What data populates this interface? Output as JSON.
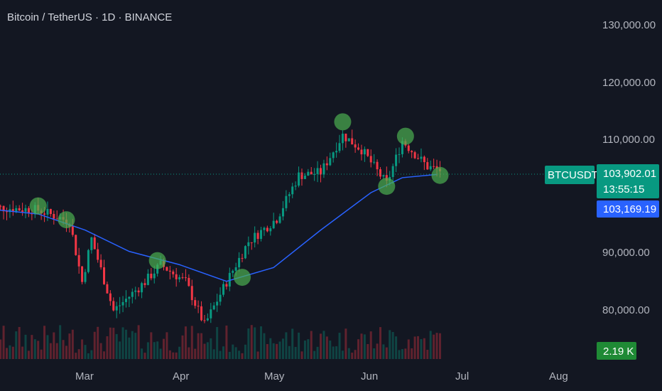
{
  "header": {
    "title": "Bitcoin / TetherUS · 1D · BINANCE"
  },
  "price_badges": {
    "symbol": "BTCUSDT",
    "last_price": "103,902.01",
    "countdown": "13:55:15",
    "ma_value": "103,169.19",
    "volume": "2.19 K"
  },
  "colors": {
    "background": "#131722",
    "up": "#089981",
    "down": "#f23645",
    "ma_line": "#2962ff",
    "circle": "#4caf50"
  },
  "chart_data": {
    "type": "candlestick",
    "title": "Bitcoin / TetherUS · 1D · BINANCE",
    "xlabel": "",
    "ylabel": "",
    "x_ticks": [
      "Mar",
      "Apr",
      "May",
      "Jun",
      "Jul",
      "Aug"
    ],
    "x_tick_dates": [
      "2025-03-01",
      "2025-04-01",
      "2025-05-01",
      "2025-06-01",
      "2025-07-01",
      "2025-08-01"
    ],
    "y_ticks": [
      "80,000.00",
      "90,000.00",
      "110,000.00",
      "120,000.00",
      "130,000.00"
    ],
    "y_tick_values": [
      80000,
      90000,
      110000,
      120000,
      130000
    ],
    "ylim": [
      74000,
      134000
    ],
    "grid": false,
    "moving_average": {
      "values_at": [
        {
          "date": "2025-02-01",
          "value": 97000
        },
        {
          "date": "2025-02-14",
          "value": 96300
        },
        {
          "date": "2025-03-01",
          "value": 93500
        },
        {
          "date": "2025-03-15",
          "value": 89800
        },
        {
          "date": "2025-03-31",
          "value": 87500
        },
        {
          "date": "2025-04-15",
          "value": 84600
        },
        {
          "date": "2025-04-30",
          "value": 87000
        },
        {
          "date": "2025-05-15",
          "value": 93500
        },
        {
          "date": "2025-05-31",
          "value": 100000
        },
        {
          "date": "2025-06-10",
          "value": 102600
        },
        {
          "date": "2025-06-21",
          "value": 103169
        }
      ]
    },
    "highlight_points": [
      {
        "date": "2025-02-14",
        "price": 97700
      },
      {
        "date": "2025-02-23",
        "price": 95300
      },
      {
        "date": "2025-03-24",
        "price": 88200
      },
      {
        "date": "2025-04-20",
        "price": 85300
      },
      {
        "date": "2025-05-22",
        "price": 112300
      },
      {
        "date": "2025-06-05",
        "price": 101100
      },
      {
        "date": "2025-06-11",
        "price": 109800
      },
      {
        "date": "2025-06-22",
        "price": 103000
      }
    ],
    "last_price": 103902.01,
    "ma_last": 103169.19
  }
}
